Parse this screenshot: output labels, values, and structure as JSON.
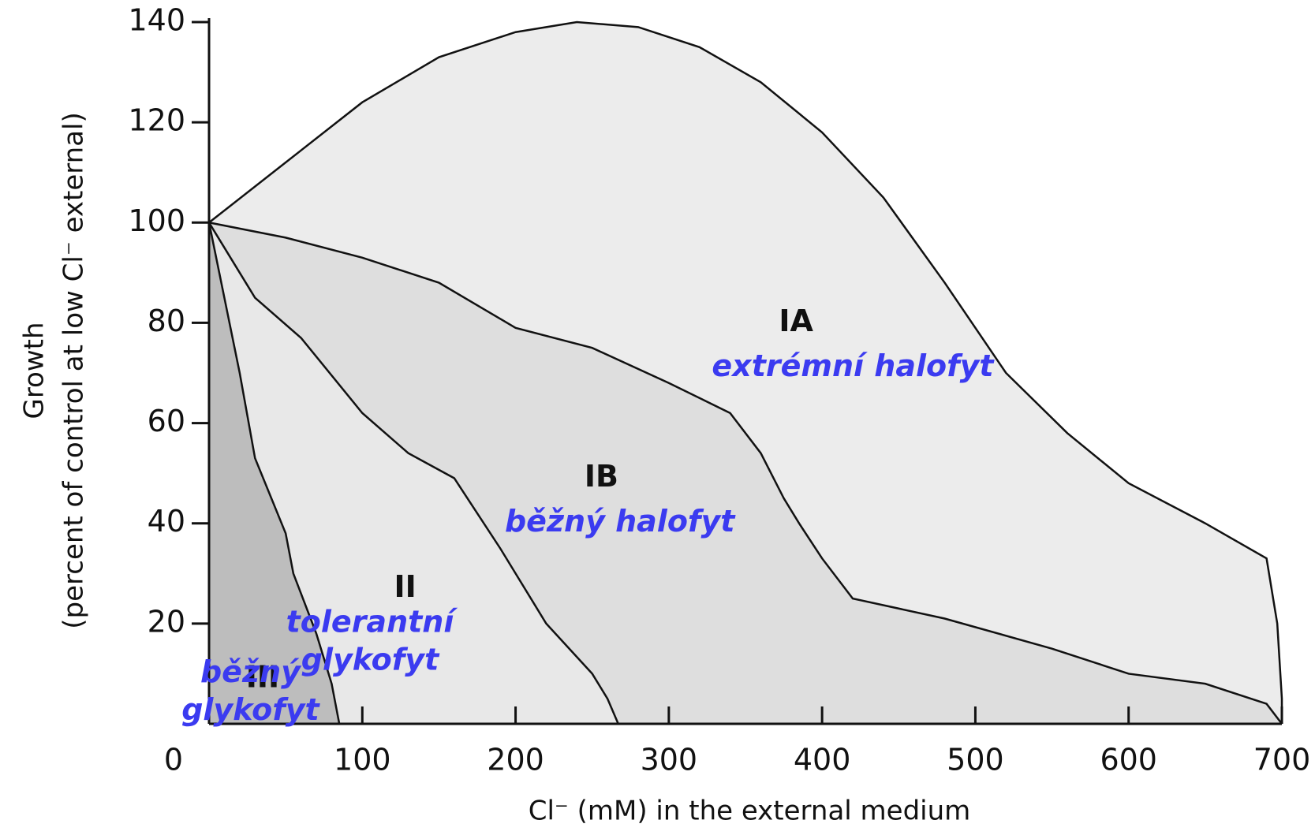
{
  "chart_data": {
    "type": "area",
    "x_label": "Cl⁻ (mM) in the external medium",
    "y_label": [
      "Growth",
      "(percent of control at low Cl⁻ external)"
    ],
    "xlim": [
      0,
      700
    ],
    "xticks": [
      0,
      100,
      200,
      300,
      400,
      500,
      600,
      700
    ],
    "ylim": [
      0,
      140
    ],
    "yticks": [
      20,
      40,
      60,
      80,
      100,
      120,
      140
    ],
    "series": [
      {
        "name": "IA",
        "label": [
          "extrémní halofyt"
        ],
        "color": "#ececec",
        "x": [
          0,
          50,
          100,
          150,
          200,
          240,
          280,
          320,
          360,
          400,
          440,
          480,
          520,
          560,
          600,
          650,
          690,
          697,
          700,
          700
        ],
        "values": [
          100,
          112,
          124,
          133,
          138,
          140,
          139,
          135,
          128,
          118,
          105,
          88,
          70,
          58,
          48,
          40,
          33,
          20,
          5,
          0
        ]
      },
      {
        "name": "IB",
        "label": [
          "běžný halofyt"
        ],
        "color": "#dedede",
        "x": [
          0,
          50,
          100,
          150,
          200,
          250,
          300,
          340,
          360,
          375,
          385,
          400,
          420,
          480,
          550,
          600,
          650,
          690,
          700
        ],
        "values": [
          100,
          97,
          93,
          88,
          79,
          75,
          68,
          62,
          54,
          45,
          40,
          33,
          25,
          21,
          15,
          10,
          8,
          4,
          0
        ]
      },
      {
        "name": "II",
        "label": [
          "tolerantní",
          "glykofyt"
        ],
        "color": "#e8e8e8",
        "x": [
          0,
          30,
          60,
          100,
          130,
          160,
          190,
          220,
          250,
          260,
          267
        ],
        "values": [
          100,
          85,
          77,
          62,
          54,
          49,
          35,
          20,
          10,
          5,
          0
        ]
      },
      {
        "name": "III",
        "label": [
          "běžný",
          "glykofyt"
        ],
        "color": "#bdbdbd",
        "x": [
          0,
          20,
          30,
          50,
          55,
          60,
          70,
          80,
          85
        ],
        "values": [
          100,
          70,
          53,
          38,
          30,
          26,
          18,
          8,
          0
        ]
      }
    ]
  }
}
